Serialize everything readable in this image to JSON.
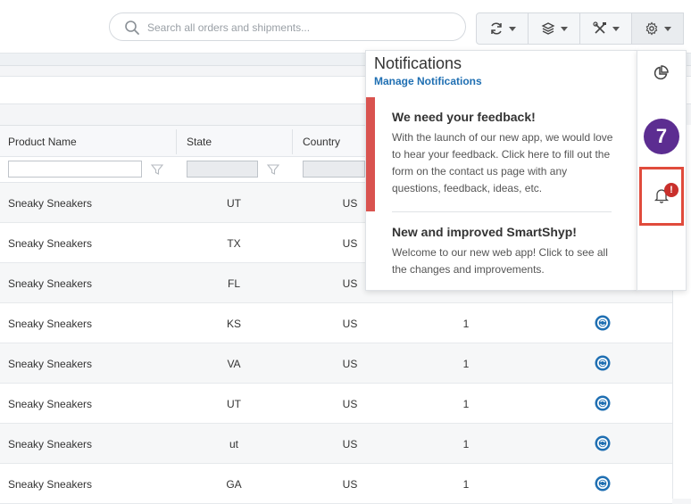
{
  "search": {
    "placeholder": "Search all orders and shipments..."
  },
  "toolbar": {
    "buttons": [
      {
        "icon": "refresh-icon"
      },
      {
        "icon": "layers-icon"
      },
      {
        "icon": "tools-icon"
      },
      {
        "icon": "gear-icon"
      }
    ]
  },
  "table": {
    "columns": [
      "Product Name",
      "State",
      "Country"
    ],
    "rows": [
      {
        "product": "Sneaky Sneakers",
        "state": "UT",
        "country": "US",
        "qty": ""
      },
      {
        "product": "Sneaky Sneakers",
        "state": "TX",
        "country": "US",
        "qty": ""
      },
      {
        "product": "Sneaky Sneakers",
        "state": "FL",
        "country": "US",
        "qty": ""
      },
      {
        "product": "Sneaky Sneakers",
        "state": "KS",
        "country": "US",
        "qty": "1"
      },
      {
        "product": "Sneaky Sneakers",
        "state": "VA",
        "country": "US",
        "qty": "1"
      },
      {
        "product": "Sneaky Sneakers",
        "state": "UT",
        "country": "US",
        "qty": "1"
      },
      {
        "product": "Sneaky Sneakers",
        "state": "ut",
        "country": "US",
        "qty": "1"
      },
      {
        "product": "Sneaky Sneakers",
        "state": "GA",
        "country": "US",
        "qty": "1"
      }
    ]
  },
  "notifications": {
    "title": "Notifications",
    "manage_label": "Manage Notifications",
    "items": [
      {
        "title": "We need your feedback!",
        "body": "With the launch of our new app, we would love to hear your feedback. Click here to fill out the form on the contact us page with any questions, feedback, ideas, etc."
      },
      {
        "title": "New and improved SmartShyp!",
        "body": "Welcome to our new web app! Click to see all the changes and improvements."
      }
    ]
  },
  "sidepanel": {
    "badge_count": "7",
    "alert_mark": "!"
  },
  "colors": {
    "accent": "#1f6fb2",
    "badge": "#5c2d91",
    "alert": "#d9534f",
    "highlight": "#e04b3c"
  }
}
